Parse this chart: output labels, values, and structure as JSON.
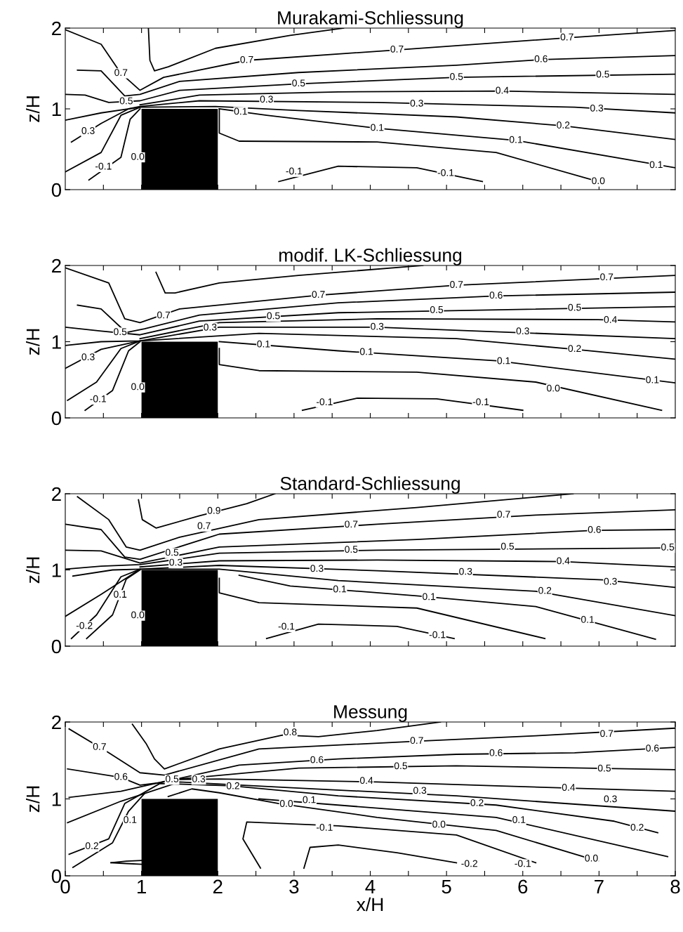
{
  "chart_data": [
    {
      "type": "line",
      "title": "Murakami-Schliessung",
      "ylabel": "z/H",
      "xlim": [
        0,
        8
      ],
      "ylim": [
        0,
        2
      ],
      "yticks": [
        0,
        1,
        2
      ],
      "tick_labels": "y",
      "xticks": [
        {
          "value": 0.5,
          "label": null
        },
        {
          "value": 1,
          "label": null
        },
        {
          "value": 1.5,
          "label": null
        },
        {
          "value": 2,
          "label": null
        },
        {
          "value": 2.5,
          "label": null
        },
        {
          "value": 3,
          "label": null
        },
        {
          "value": 3.5,
          "label": null
        },
        {
          "value": 4,
          "label": null
        },
        {
          "value": 4.5,
          "label": null
        },
        {
          "value": 5,
          "label": null
        },
        {
          "value": 5.5,
          "label": null
        },
        {
          "value": 6,
          "label": null
        },
        {
          "value": 6.5,
          "label": null
        },
        {
          "value": 7,
          "label": null
        },
        {
          "value": 7.5,
          "label": null
        }
      ],
      "grid": false,
      "legend": false,
      "series": [
        {
          "color": "#000000",
          "x": [
            1.09,
            1.11,
            1.17,
            1.35,
            1.97,
            2.95,
            3.65
          ],
          "values": [
            2.0,
            1.6,
            1.47,
            1.52,
            1.75,
            1.91,
            2.0
          ]
        },
        {
          "color": "#000000",
          "x": [
            0,
            0.47,
            0.73,
            0.98,
            1.29,
            2.38,
            4.35,
            6.58,
            8
          ],
          "values": [
            1.98,
            1.8,
            1.44,
            1.23,
            1.39,
            1.6,
            1.73,
            1.88,
            1.97
          ]
        },
        {
          "color": "#000000",
          "x": [
            0.16,
            0.47,
            0.78,
            0.98,
            1.5,
            3.06,
            5.13,
            6.24,
            8
          ],
          "values": [
            1.48,
            1.47,
            1.16,
            1.18,
            1.34,
            1.45,
            1.54,
            1.61,
            1.66
          ]
        },
        {
          "color": "#000000",
          "x": [
            0,
            0.26,
            0.57,
            0.98,
            1.5,
            3.06,
            5.13,
            8
          ],
          "values": [
            1.18,
            1.17,
            1.08,
            1.1,
            1.23,
            1.31,
            1.39,
            1.43
          ]
        },
        {
          "color": "#000000",
          "x": [
            0.98,
            1.76,
            3.58,
            5.73,
            8
          ],
          "values": [
            1.05,
            1.17,
            1.21,
            1.22,
            1.18
          ]
        },
        {
          "color": "#000000",
          "x": [
            0.08,
            0.47,
            0.83,
            0.98,
            1.76,
            4.09,
            6.68,
            8
          ],
          "values": [
            0.59,
            0.82,
            1.0,
            1.03,
            1.1,
            1.08,
            1.02,
            0.95
          ]
        },
        {
          "color": "#000000",
          "x": [
            0,
            0.47,
            0.98,
            1.97,
            3.06,
            5.13,
            6.53,
            8
          ],
          "values": [
            0.86,
            0.95,
            1.02,
            1.03,
            0.98,
            0.9,
            0.79,
            0.62
          ]
        },
        {
          "color": "#000000",
          "x": [
            0.31,
            0.73,
            0.85,
            0.98
          ],
          "values": [
            0.12,
            0.4,
            0.87,
            1.0
          ]
        },
        {
          "color": "#000000",
          "x": [
            2.02,
            2.64,
            4.09,
            5.91,
            8
          ],
          "values": [
            1.0,
            0.92,
            0.76,
            0.61,
            0.27
          ]
        },
        {
          "color": "#000000",
          "x": [
            0,
            0.47,
            0.73,
            0.98
          ],
          "values": [
            0.22,
            0.46,
            0.92,
            1.02
          ]
        },
        {
          "color": "#000000",
          "x": [
            2.02,
            2.02,
            2.28,
            4.09,
            5.65,
            6.99
          ],
          "values": [
            1.0,
            0.7,
            0.6,
            0.59,
            0.46,
            0.1
          ]
        },
        {
          "color": "#000000",
          "x": [
            2.8,
            3.58,
            4.61,
            5.47
          ],
          "values": [
            0.1,
            0.29,
            0.27,
            0.1
          ]
        },
        {
          "type": "area",
          "color": "#000000",
          "x": [
            1,
            2
          ],
          "values": [
            1,
            1
          ]
        }
      ],
      "annotations": [
        {
          "text": "0.7",
          "x": 6.58,
          "y": 1.88
        },
        {
          "text": "0.7",
          "x": 4.35,
          "y": 1.73
        },
        {
          "text": "0.7",
          "x": 2.38,
          "y": 1.6
        },
        {
          "text": "0.7",
          "x": 0.73,
          "y": 1.44
        },
        {
          "text": "0.6",
          "x": 6.24,
          "y": 1.61
        },
        {
          "text": "0.5",
          "x": 3.06,
          "y": 1.31
        },
        {
          "text": "0.5",
          "x": 5.13,
          "y": 1.39
        },
        {
          "text": "0.5",
          "x": 7.05,
          "y": 1.42
        },
        {
          "text": "0.5",
          "x": 0.8,
          "y": 1.09
        },
        {
          "text": "0.4",
          "x": 5.73,
          "y": 1.22
        },
        {
          "text": "0.3",
          "x": 2.64,
          "y": 1.11
        },
        {
          "text": "0.3",
          "x": 4.61,
          "y": 1.06
        },
        {
          "text": "0.3",
          "x": 6.97,
          "y": 1.0
        },
        {
          "text": "0.3",
          "x": 0.3,
          "y": 0.72
        },
        {
          "text": "0.2",
          "x": 6.53,
          "y": 0.79
        },
        {
          "text": "0.1",
          "x": 2.3,
          "y": 0.96
        },
        {
          "text": "0.1",
          "x": 4.09,
          "y": 0.76
        },
        {
          "text": "0.1",
          "x": 5.91,
          "y": 0.61
        },
        {
          "text": "0.1",
          "x": 7.75,
          "y": 0.3
        },
        {
          "text": "-0.1",
          "x": 0.5,
          "y": 0.28
        },
        {
          "text": "-0.1",
          "x": 3.0,
          "y": 0.22
        },
        {
          "text": "-0.1",
          "x": 4.99,
          "y": 0.2
        },
        {
          "text": "0.0",
          "x": 6.99,
          "y": 0.1
        },
        {
          "text": "0.0",
          "x": 0.95,
          "y": 0.4
        }
      ]
    },
    {
      "type": "line",
      "title": "modif. LK-Schliessung",
      "ylabel": "z/H",
      "xlim": [
        0,
        8
      ],
      "ylim": [
        0,
        2
      ],
      "yticks": [
        0,
        1,
        2
      ],
      "tick_labels": "y",
      "xticks": [
        {
          "value": 0.5,
          "label": null
        },
        {
          "value": 1,
          "label": null
        },
        {
          "value": 1.5,
          "label": null
        },
        {
          "value": 2,
          "label": null
        },
        {
          "value": 2.5,
          "label": null
        },
        {
          "value": 3,
          "label": null
        },
        {
          "value": 3.5,
          "label": null
        },
        {
          "value": 4,
          "label": null
        },
        {
          "value": 4.5,
          "label": null
        },
        {
          "value": 5,
          "label": null
        },
        {
          "value": 5.5,
          "label": null
        },
        {
          "value": 6,
          "label": null
        },
        {
          "value": 6.5,
          "label": null
        },
        {
          "value": 7,
          "label": null
        },
        {
          "value": 7.5,
          "label": null
        }
      ],
      "grid": false,
      "legend": false,
      "series": [
        {
          "color": "#000000",
          "x": [
            1.19,
            1.31,
            1.44,
            2.02,
            3.06,
            4.69
          ],
          "values": [
            1.91,
            1.64,
            1.64,
            1.77,
            1.87,
            2.0
          ]
        },
        {
          "color": "#000000",
          "x": [
            0,
            0.57,
            0.78,
            0.98,
            1.5,
            3.32,
            5.13,
            8
          ],
          "values": [
            1.97,
            1.77,
            1.3,
            1.25,
            1.43,
            1.61,
            1.74,
            1.87
          ]
        },
        {
          "color": "#000000",
          "x": [
            0.16,
            0.47,
            0.8,
            1.04,
            1.76,
            3.58,
            5.65,
            8
          ],
          "values": [
            1.48,
            1.43,
            1.12,
            1.17,
            1.35,
            1.51,
            1.6,
            1.65
          ]
        },
        {
          "color": "#000000",
          "x": [
            0,
            0.47,
            0.98,
            1.76,
            3.58,
            8
          ],
          "values": [
            1.19,
            1.14,
            1.09,
            1.27,
            1.38,
            1.46
          ]
        },
        {
          "color": "#000000",
          "x": [
            0.98,
            2.02,
            4.09,
            6.99,
            8
          ],
          "values": [
            1.04,
            1.25,
            1.3,
            1.29,
            1.26
          ]
        },
        {
          "color": "#000000",
          "x": [
            0,
            0.47,
            0.98,
            2.02,
            4.09,
            8
          ],
          "values": [
            0.65,
            0.9,
            1.01,
            1.19,
            1.19,
            1.04
          ]
        },
        {
          "color": "#000000",
          "x": [
            0,
            0.47,
            0.98,
            2.54,
            5.13,
            6.68,
            8
          ],
          "values": [
            0.95,
            1.0,
            1.01,
            1.11,
            1.04,
            0.9,
            0.77
          ]
        },
        {
          "color": "#000000",
          "x": [
            0.26,
            0.62,
            0.83,
            0.98
          ],
          "values": [
            0.1,
            0.36,
            0.88,
            1.0
          ]
        },
        {
          "color": "#000000",
          "x": [
            2.02,
            3.58,
            5.65,
            8
          ],
          "values": [
            1.0,
            0.88,
            0.75,
            0.46
          ]
        },
        {
          "color": "#000000",
          "x": [
            0.03,
            0.41,
            0.73,
            0.98
          ],
          "values": [
            0.23,
            0.47,
            0.91,
            1.01
          ]
        },
        {
          "color": "#000000",
          "x": [
            2.02,
            2.02,
            2.54,
            4.61,
            6.17,
            7.82
          ],
          "values": [
            0.91,
            0.7,
            0.62,
            0.6,
            0.47,
            0.1
          ]
        },
        {
          "color": "#000000",
          "x": [
            3.11,
            3.83,
            4.87,
            6.0
          ],
          "values": [
            0.1,
            0.26,
            0.25,
            0.1
          ]
        },
        {
          "type": "area",
          "color": "#000000",
          "x": [
            1,
            2
          ],
          "values": [
            1,
            1
          ]
        }
      ],
      "annotations": [
        {
          "text": "0.7",
          "x": 7.1,
          "y": 1.84
        },
        {
          "text": "0.7",
          "x": 5.13,
          "y": 1.74
        },
        {
          "text": "0.7",
          "x": 3.32,
          "y": 1.61
        },
        {
          "text": "0.7",
          "x": 1.29,
          "y": 1.34
        },
        {
          "text": "0.6",
          "x": 5.65,
          "y": 1.6
        },
        {
          "text": "0.5",
          "x": 2.73,
          "y": 1.33
        },
        {
          "text": "0.5",
          "x": 4.87,
          "y": 1.41
        },
        {
          "text": "0.5",
          "x": 6.68,
          "y": 1.44
        },
        {
          "text": "0.5",
          "x": 0.72,
          "y": 1.12
        },
        {
          "text": "0.4",
          "x": 7.15,
          "y": 1.28
        },
        {
          "text": "0.3",
          "x": 1.9,
          "y": 1.18
        },
        {
          "text": "0.3",
          "x": 4.09,
          "y": 1.19
        },
        {
          "text": "0.3",
          "x": 6.0,
          "y": 1.13
        },
        {
          "text": "0.3",
          "x": 0.3,
          "y": 0.79
        },
        {
          "text": "0.2",
          "x": 6.68,
          "y": 0.9
        },
        {
          "text": "0.1",
          "x": 2.6,
          "y": 0.96
        },
        {
          "text": "0.1",
          "x": 3.95,
          "y": 0.86
        },
        {
          "text": "0.1",
          "x": 5.75,
          "y": 0.74
        },
        {
          "text": "0.1",
          "x": 7.7,
          "y": 0.49
        },
        {
          "text": "-0.1",
          "x": 0.43,
          "y": 0.24
        },
        {
          "text": "-0.1",
          "x": 3.4,
          "y": 0.2
        },
        {
          "text": "-0.1",
          "x": 5.45,
          "y": 0.2
        },
        {
          "text": "0.0",
          "x": 6.4,
          "y": 0.38
        },
        {
          "text": "0.0",
          "x": 0.95,
          "y": 0.4
        }
      ]
    },
    {
      "type": "line",
      "title": "Standard-Schliessung",
      "ylabel": "z/H",
      "xlim": [
        0,
        8
      ],
      "ylim": [
        0,
        2
      ],
      "yticks": [
        0,
        1,
        2
      ],
      "tick_labels": "y",
      "xticks": [
        {
          "value": 0.5,
          "label": null
        },
        {
          "value": 1,
          "label": null
        },
        {
          "value": 1.5,
          "label": null
        },
        {
          "value": 2,
          "label": null
        },
        {
          "value": 2.5,
          "label": null
        },
        {
          "value": 3,
          "label": null
        },
        {
          "value": 3.5,
          "label": null
        },
        {
          "value": 4,
          "label": null
        },
        {
          "value": 4.5,
          "label": null
        },
        {
          "value": 5,
          "label": null
        },
        {
          "value": 5.5,
          "label": null
        },
        {
          "value": 6,
          "label": null
        },
        {
          "value": 6.5,
          "label": null
        },
        {
          "value": 7,
          "label": null
        },
        {
          "value": 7.5,
          "label": null
        }
      ],
      "grid": false,
      "legend": false,
      "series": [
        {
          "color": "#000000",
          "x": [
            0.96,
            1.01,
            1.19,
            1.76,
            2.38,
            2.75
          ],
          "values": [
            1.92,
            1.66,
            1.55,
            1.71,
            1.87,
            2.0
          ]
        },
        {
          "color": "#000000",
          "x": [
            0.16,
            0.57,
            0.8,
            0.98,
            1.5,
            2.54,
            4.61,
            6.66
          ],
          "values": [
            1.96,
            1.66,
            1.3,
            1.26,
            1.43,
            1.66,
            1.82,
            2.0
          ]
        },
        {
          "color": "#000000",
          "x": [
            0,
            0.47,
            0.78,
            0.98,
            2.02,
            4.09,
            6.17,
            8
          ],
          "values": [
            1.6,
            1.53,
            1.17,
            1.14,
            1.47,
            1.6,
            1.72,
            1.79
          ]
        },
        {
          "color": "#000000",
          "x": [
            0,
            0.47,
            0.98,
            2.02,
            4.61,
            6.94,
            8
          ],
          "values": [
            1.26,
            1.25,
            1.09,
            1.3,
            1.4,
            1.52,
            1.53
          ]
        },
        {
          "color": "#000000",
          "x": [
            0,
            0.47,
            0.98,
            2.02,
            4.09,
            8
          ],
          "values": [
            1.01,
            1.05,
            1.07,
            1.22,
            1.26,
            1.29
          ]
        },
        {
          "color": "#000000",
          "x": [
            0.98,
            2.02,
            4.09,
            6.53,
            8
          ],
          "values": [
            1.04,
            1.12,
            1.13,
            1.11,
            1.04
          ]
        },
        {
          "color": "#000000",
          "x": [
            0,
            0.47,
            0.98,
            2.02,
            4.09,
            7.05,
            8
          ],
          "values": [
            0.39,
            0.68,
            1.01,
            1.06,
            0.99,
            0.87,
            0.77
          ]
        },
        {
          "color": "#000000",
          "x": [
            0.1,
            0.62,
            0.98,
            2.02,
            3.58,
            6.17,
            8
          ],
          "values": [
            0.92,
            1.0,
            1.01,
            1.01,
            0.86,
            0.72,
            0.4
          ]
        },
        {
          "color": "#000000",
          "x": [
            0.28,
            0.62,
            0.8,
            0.98
          ],
          "values": [
            0.1,
            0.41,
            0.88,
            1.0
          ]
        },
        {
          "color": "#000000",
          "x": [
            2.28,
            2.95,
            4.61,
            6.17,
            7.74
          ],
          "values": [
            0.93,
            0.79,
            0.66,
            0.52,
            0.09
          ]
        },
        {
          "color": "#000000",
          "x": [
            0.08,
            0.41,
            0.73,
            0.98
          ],
          "values": [
            0.1,
            0.41,
            0.91,
            1.01
          ]
        },
        {
          "color": "#000000",
          "x": [
            2.02,
            2.02,
            2.54,
            4.61,
            6.29
          ],
          "values": [
            0.89,
            0.7,
            0.57,
            0.5,
            0.1
          ]
        },
        {
          "color": "#000000",
          "x": [
            2.64,
            3.32,
            4.35,
            5.1
          ],
          "values": [
            0.1,
            0.29,
            0.26,
            0.1
          ]
        },
        {
          "type": "area",
          "color": "#000000",
          "x": [
            1,
            2
          ],
          "values": [
            1,
            1
          ]
        }
      ],
      "annotations": [
        {
          "text": "0.9",
          "x": 1.95,
          "y": 1.77
        },
        {
          "text": "0.7",
          "x": 1.82,
          "y": 1.57
        },
        {
          "text": "0.7",
          "x": 3.75,
          "y": 1.59
        },
        {
          "text": "0.7",
          "x": 5.75,
          "y": 1.72
        },
        {
          "text": "0.6",
          "x": 6.94,
          "y": 1.52
        },
        {
          "text": "0.5",
          "x": 1.4,
          "y": 1.22
        },
        {
          "text": "0.5",
          "x": 3.75,
          "y": 1.26
        },
        {
          "text": "0.5",
          "x": 5.8,
          "y": 1.3
        },
        {
          "text": "0.5",
          "x": 7.9,
          "y": 1.29
        },
        {
          "text": "0.4",
          "x": 6.53,
          "y": 1.11
        },
        {
          "text": "0.3",
          "x": 1.45,
          "y": 1.09
        },
        {
          "text": "0.3",
          "x": 3.3,
          "y": 1.01
        },
        {
          "text": "0.3",
          "x": 5.25,
          "y": 0.97
        },
        {
          "text": "0.3",
          "x": 7.15,
          "y": 0.84
        },
        {
          "text": "0.2",
          "x": 6.29,
          "y": 0.72
        },
        {
          "text": "0.1",
          "x": 3.6,
          "y": 0.74
        },
        {
          "text": "0.1",
          "x": 4.77,
          "y": 0.64
        },
        {
          "text": "0.1",
          "x": 6.85,
          "y": 0.34
        },
        {
          "text": "0.1",
          "x": 0.72,
          "y": 0.67
        },
        {
          "text": "-0.2",
          "x": 0.25,
          "y": 0.26
        },
        {
          "text": "-0.1",
          "x": 2.9,
          "y": 0.25
        },
        {
          "text": "-0.1",
          "x": 4.88,
          "y": 0.14
        },
        {
          "text": "0.0",
          "x": 0.95,
          "y": 0.4
        }
      ]
    },
    {
      "type": "line",
      "title": "Messung",
      "xlabel": "x/H",
      "ylabel": "z/H",
      "xlim": [
        0,
        8
      ],
      "ylim": [
        0,
        2
      ],
      "yticks": [
        0,
        1,
        2
      ],
      "xticks": [
        0,
        {
          "value": 0.5,
          "label": null
        },
        1,
        {
          "value": 1.5,
          "label": null
        },
        2,
        {
          "value": 2.5,
          "label": null
        },
        3,
        {
          "value": 3.5,
          "label": null
        },
        4,
        {
          "value": 4.5,
          "label": null
        },
        5,
        {
          "value": 5.5,
          "label": null
        },
        6,
        {
          "value": 6.5,
          "label": null
        },
        7,
        {
          "value": 7.5,
          "label": null
        },
        8
      ],
      "grid": false,
      "legend": false,
      "series": [
        {
          "color": "#000000",
          "x": [
            0.88,
            1.06,
            1.17,
            1.3,
            2.02,
            2.85,
            3.32,
            4.09,
            4.92
          ],
          "values": [
            1.97,
            1.72,
            1.52,
            1.39,
            1.65,
            1.83,
            1.81,
            1.89,
            2.0
          ]
        },
        {
          "color": "#000000",
          "x": [
            0.05,
            0.57,
            0.98,
            1.3,
            2.54,
            4.61,
            6.17,
            8
          ],
          "values": [
            1.91,
            1.6,
            1.34,
            1.31,
            1.65,
            1.75,
            1.82,
            1.92
          ]
        },
        {
          "color": "#000000",
          "x": [
            0.03,
            0.73,
            0.98,
            1.24,
            2.28,
            3.58,
            5.13,
            6.68,
            8
          ],
          "values": [
            1.39,
            1.28,
            1.18,
            1.21,
            1.44,
            1.52,
            1.58,
            1.6,
            1.67
          ]
        },
        {
          "color": "#000000",
          "x": [
            0.05,
            0.73,
            1.4,
            3.06,
            5.13,
            8
          ],
          "values": [
            1.02,
            1.1,
            1.25,
            1.4,
            1.43,
            1.38
          ]
        },
        {
          "color": "#000000",
          "x": [
            1.35,
            2.02,
            4.09,
            5.65,
            8
          ],
          "values": [
            1.25,
            1.26,
            1.22,
            1.17,
            1.1
          ]
        },
        {
          "color": "#000000",
          "x": [
            0.03,
            0.73,
            1.5,
            3.06,
            5.13,
            8
          ],
          "values": [
            0.69,
            0.97,
            1.22,
            1.14,
            1.04,
            0.84
          ]
        },
        {
          "color": "#000000",
          "x": [
            0.05,
            0.57,
            0.78,
            1.24,
            2.18,
            3.58,
            5.65,
            7.2,
            7.77
          ],
          "values": [
            0.28,
            0.48,
            0.94,
            1.2,
            1.17,
            1.04,
            0.92,
            0.71,
            0.56
          ]
        },
        {
          "color": "#000000",
          "x": [
            0.1,
            0.62,
            0.83,
            1.04
          ],
          "values": [
            0.11,
            0.43,
            0.84,
            1.07
          ]
        },
        {
          "color": "#000000",
          "x": [
            2.54,
            4.09,
            5.65,
            7.9
          ],
          "values": [
            1.0,
            0.88,
            0.76,
            0.25
          ]
        },
        {
          "color": "#000000",
          "x": [
            1.35,
            1.66,
            2.02,
            2.8,
            4.09,
            5.65,
            6.99
          ],
          "values": [
            1.03,
            1.13,
            1.08,
            0.94,
            0.76,
            0.59,
            0.19
          ]
        },
        {
          "color": "#000000",
          "x": [
            2.56,
            2.33,
            2.38,
            3.58,
            5.13,
            6.17
          ],
          "values": [
            0.1,
            0.48,
            0.7,
            0.65,
            0.53,
            0.17
          ]
        },
        {
          "color": "#000000",
          "x": [
            3.13,
            3.21,
            3.58,
            4.35,
            5.13
          ],
          "values": [
            0.1,
            0.37,
            0.4,
            0.3,
            0.17
          ]
        },
        {
          "color": "#000000",
          "x": [
            0.6,
            0.8,
            1.0
          ],
          "values": [
            0.17,
            0.19,
            0.2
          ]
        },
        {
          "color": "#000000",
          "x": [
            0.6,
            0.8,
            1.0
          ],
          "values": [
            0.17,
            0.16,
            0.15
          ]
        },
        {
          "type": "area",
          "color": "#000000",
          "x": [
            1,
            2
          ],
          "values": [
            1,
            1
          ]
        }
      ],
      "annotations": [
        {
          "text": "0.8",
          "x": 2.95,
          "y": 1.86
        },
        {
          "text": "0.7",
          "x": 0.45,
          "y": 1.67
        },
        {
          "text": "0.7",
          "x": 4.61,
          "y": 1.75
        },
        {
          "text": "0.7",
          "x": 7.1,
          "y": 1.84
        },
        {
          "text": "0.6",
          "x": 0.73,
          "y": 1.28
        },
        {
          "text": "0.6",
          "x": 3.3,
          "y": 1.5
        },
        {
          "text": "0.6",
          "x": 5.65,
          "y": 1.59
        },
        {
          "text": "0.6",
          "x": 7.7,
          "y": 1.65
        },
        {
          "text": "0.5",
          "x": 1.4,
          "y": 1.25
        },
        {
          "text": "0.5",
          "x": 4.4,
          "y": 1.42
        },
        {
          "text": "0.5",
          "x": 7.07,
          "y": 1.39
        },
        {
          "text": "0.3",
          "x": 1.75,
          "y": 1.25
        },
        {
          "text": "0.3",
          "x": 4.65,
          "y": 1.1
        },
        {
          "text": "0.3",
          "x": 7.15,
          "y": 0.99
        },
        {
          "text": "0.4",
          "x": 3.95,
          "y": 1.23
        },
        {
          "text": "0.4",
          "x": 6.6,
          "y": 1.14
        },
        {
          "text": "0.2",
          "x": 2.2,
          "y": 1.16
        },
        {
          "text": "0.2",
          "x": 5.4,
          "y": 0.94
        },
        {
          "text": "0.2",
          "x": 7.5,
          "y": 0.62
        },
        {
          "text": "0.2",
          "x": 0.35,
          "y": 0.38
        },
        {
          "text": "0.0",
          "x": 2.9,
          "y": 0.93
        },
        {
          "text": "0.0",
          "x": 4.9,
          "y": 0.66
        },
        {
          "text": "0.0",
          "x": 6.9,
          "y": 0.22
        },
        {
          "text": "0.1",
          "x": 3.2,
          "y": 0.98
        },
        {
          "text": "0.1",
          "x": 0.85,
          "y": 0.72
        },
        {
          "text": "0.1",
          "x": 5.95,
          "y": 0.72
        },
        {
          "text": "-0.1",
          "x": 3.4,
          "y": 0.62
        },
        {
          "text": "-0.1",
          "x": 6.0,
          "y": 0.15
        },
        {
          "text": "-0.2",
          "x": 5.3,
          "y": 0.15
        }
      ]
    }
  ]
}
